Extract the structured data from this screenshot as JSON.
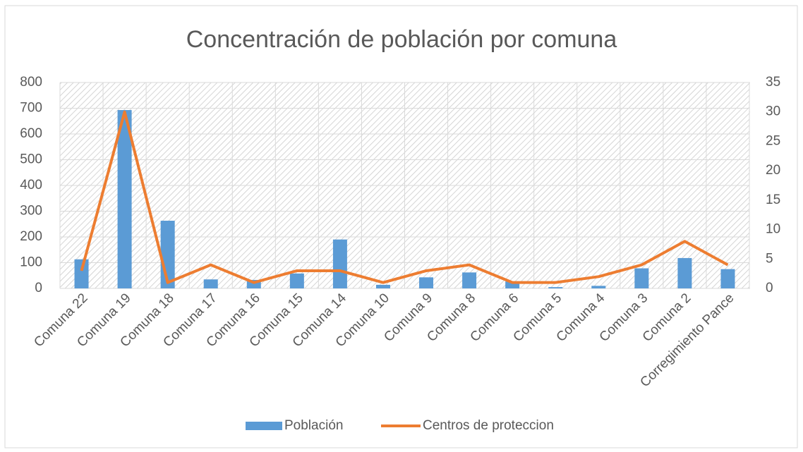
{
  "chart_data": {
    "type": "bar",
    "title": "Concentración de población por comuna",
    "categories": [
      "Comuna 22",
      "Comuna 19",
      "Comuna 18",
      "Comuna 17",
      "Comuna 16",
      "Comuna 15",
      "Comuna 14",
      "Comuna 10",
      "Comuna 9",
      "Comuna 8",
      "Comuna 6",
      "Comuna 5",
      "Comuna 4",
      "Comuna 3",
      "Comuna 2",
      "Corregimiento Pance"
    ],
    "series": [
      {
        "name": "Población",
        "type": "bar",
        "color": "#5b9bd5",
        "values": [
          113,
          693,
          263,
          35,
          33,
          58,
          190,
          14,
          43,
          62,
          27,
          5,
          10,
          78,
          118,
          75
        ]
      },
      {
        "name": "Centros de proteccion",
        "type": "line",
        "axis": "y2",
        "color": "#ed7d31",
        "values": [
          3,
          30,
          1,
          4,
          1,
          3,
          3,
          1,
          3,
          4,
          1,
          1,
          2,
          4,
          8,
          4
        ]
      }
    ],
    "ylim": [
      0,
      800
    ],
    "yticks": [
      0,
      100,
      200,
      300,
      400,
      500,
      600,
      700,
      800
    ],
    "y2lim": [
      0,
      35
    ],
    "y2ticks": [
      0,
      5,
      10,
      15,
      20,
      25,
      30,
      35
    ],
    "grid": true,
    "legend": "bottom"
  }
}
